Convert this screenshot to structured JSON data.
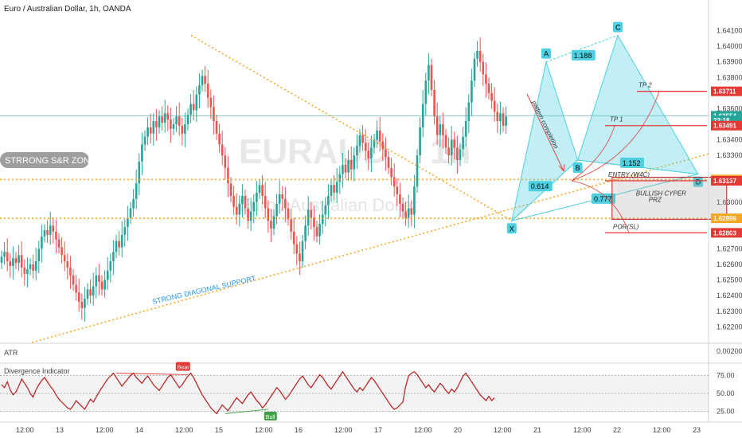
{
  "title": "Euro / Australian Dollar, 1h, OANDA",
  "watermark": {
    "line1": "EURAUD",
    "line2": "1h",
    "line3": "Euro / Australian Dollar"
  },
  "colors": {
    "bull": "#26a69a",
    "bear": "#ef5350",
    "pattern": "#4dd0e1",
    "support": "#f5a623",
    "red_level": "#e53935",
    "rsi": "#b71c1c",
    "green_label": "#43a047"
  },
  "chart_data": {
    "type": "candlestick",
    "ylim": [
      1.6212,
      1.642
    ],
    "price_ticks": [
      "1.64100",
      "1.64000",
      "1.63900",
      "1.63800",
      "1.63600",
      "1.63400",
      "1.63300",
      "1.63000",
      "1.62900",
      "1.62700",
      "1.62600",
      "1.62500",
      "1.62400",
      "1.62300",
      "1.62200"
    ],
    "time_ticks": [
      "12:00",
      "13",
      "12:00",
      "14",
      "12:00",
      "15",
      "12:00",
      "16",
      "12:00",
      "17",
      "12:00",
      "20",
      "12:00",
      "21",
      "12:00",
      "22",
      "12:00",
      "23"
    ],
    "price_flags": [
      {
        "label": "1.63711",
        "value": 1.63711,
        "color": "#e53935"
      },
      {
        "label": "1.63554",
        "value": 1.63554,
        "color": "#26a69a"
      },
      {
        "label": "23:18",
        "value": 1.63525,
        "color": "#26a69a"
      },
      {
        "label": "1.63491",
        "value": 1.63491,
        "color": "#e53935"
      },
      {
        "label": "1.63145",
        "value": 1.63145,
        "color": "#f5a623"
      },
      {
        "label": "1.63137",
        "value": 1.63137,
        "color": "#e53935"
      },
      {
        "label": "1.62896",
        "value": 1.62896,
        "color": "#f5a623"
      },
      {
        "label": "1.62803",
        "value": 1.62803,
        "color": "#e53935"
      }
    ],
    "closes": [
      1.6265,
      1.6268,
      1.6262,
      1.6259,
      1.6264,
      1.6261,
      1.6266,
      1.6258,
      1.6254,
      1.6257,
      1.626,
      1.6256,
      1.6262,
      1.627,
      1.6278,
      1.6282,
      1.6279,
      1.6285,
      1.6281,
      1.6276,
      1.6271,
      1.6266,
      1.6262,
      1.6258,
      1.6253,
      1.6247,
      1.6242,
      1.6236,
      1.6232,
      1.6238,
      1.6244,
      1.624,
      1.6246,
      1.6253,
      1.6249,
      1.6244,
      1.625,
      1.6256,
      1.6262,
      1.6268,
      1.6275,
      1.6271,
      1.6279,
      1.6284,
      1.629,
      1.6296,
      1.6302,
      1.6312,
      1.6326,
      1.6337,
      1.6342,
      1.6348,
      1.6344,
      1.6352,
      1.6348,
      1.6355,
      1.6351,
      1.6357,
      1.6353,
      1.6347,
      1.635,
      1.6355,
      1.6349,
      1.6344,
      1.635,
      1.6356,
      1.6363,
      1.6359,
      1.6369,
      1.6375,
      1.6381,
      1.6376,
      1.6367,
      1.6361,
      1.6352,
      1.6344,
      1.6337,
      1.633,
      1.6322,
      1.6312,
      1.6304,
      1.6297,
      1.6292,
      1.6299,
      1.6304,
      1.6296,
      1.6288,
      1.6294,
      1.63,
      1.6306,
      1.6311,
      1.6304,
      1.6296,
      1.6288,
      1.6283,
      1.6291,
      1.6299,
      1.6305,
      1.6302,
      1.6296,
      1.6289,
      1.6281,
      1.6273,
      1.6267,
      1.6262,
      1.6275,
      1.6285,
      1.6295,
      1.629,
      1.6284,
      1.6278,
      1.6286,
      1.6292,
      1.6298,
      1.6304,
      1.6311,
      1.6306,
      1.6313,
      1.6318,
      1.6324,
      1.6319,
      1.6327,
      1.6321,
      1.633,
      1.6336,
      1.6343,
      1.6338,
      1.6333,
      1.6328,
      1.6335,
      1.634,
      1.6346,
      1.6339,
      1.6334,
      1.6329,
      1.6322,
      1.6316,
      1.631,
      1.6305,
      1.6299,
      1.6294,
      1.629,
      1.6296,
      1.6292,
      1.631,
      1.633,
      1.6348,
      1.6363,
      1.6378,
      1.6388,
      1.6372,
      1.6355,
      1.6343,
      1.635,
      1.6343,
      1.6335,
      1.633,
      1.634,
      1.6335,
      1.6327,
      1.6334,
      1.6342,
      1.6352,
      1.6364,
      1.6378,
      1.6392,
      1.6397,
      1.639,
      1.6382,
      1.6376,
      1.637,
      1.6365,
      1.6358,
      1.6352,
      1.6357,
      1.6349,
      1.6355
    ],
    "pattern_points": [
      {
        "label": "X",
        "x": 178,
        "y": 1.6288
      },
      {
        "label": "A",
        "x": 190,
        "y": 1.639
      },
      {
        "label": "B",
        "x": 201,
        "y": 1.6327
      },
      {
        "label": "C",
        "x": 215,
        "y": 1.6407
      },
      {
        "label": "D",
        "x": 243,
        "y": 1.6318
      }
    ],
    "ratios": [
      {
        "label": "1.188",
        "x": 203,
        "y": 1.6394
      },
      {
        "label": "0.614",
        "x": 188,
        "y": 1.631
      },
      {
        "label": "1.152",
        "x": 220,
        "y": 1.6325
      },
      {
        "label": "0.777",
        "x": 210,
        "y": 1.6302
      }
    ],
    "prz": {
      "label1": "BULLISH CYPER",
      "label2": "PRZ",
      "x0": 213,
      "x1": 253,
      "y0": 1.6289,
      "y1": 1.6316
    },
    "levels": [
      {
        "label": "TP 2",
        "value": 1.63711
      },
      {
        "label": "TP 1",
        "value": 1.63491
      },
      {
        "label": "ENTRY (W4C)",
        "value": 1.63137
      },
      {
        "label": "POR(SL)",
        "value": 1.62803
      }
    ],
    "zone_label": "STRRONG S&R ZONE",
    "diag_label": "STRONG DIAGONAL SUPPORT",
    "completion_label": "pattern completion"
  },
  "atr": {
    "label": "ATR",
    "value_label": "0.00200"
  },
  "divergence": {
    "label": "Divergence Indicator",
    "ticks": [
      "75.00",
      "50.00",
      "25.00"
    ],
    "bear_label": "Bear",
    "bull_label": "Bull",
    "values": [
      62,
      58,
      66,
      55,
      48,
      52,
      60,
      70,
      64,
      58,
      50,
      45,
      55,
      62,
      68,
      72,
      66,
      60,
      55,
      48,
      42,
      38,
      34,
      30,
      28,
      33,
      40,
      36,
      32,
      28,
      35,
      42,
      38,
      45,
      52,
      58,
      64,
      70,
      74,
      78,
      72,
      66,
      60,
      65,
      70,
      75,
      78,
      72,
      68,
      64,
      70,
      74,
      68,
      62,
      58,
      54,
      60,
      66,
      72,
      76,
      70,
      64,
      58,
      62,
      68,
      74,
      78,
      72,
      64,
      56,
      48,
      42,
      36,
      30,
      26,
      22,
      28,
      34,
      30,
      26,
      32,
      38,
      44,
      40,
      36,
      42,
      48,
      52,
      46,
      40,
      36,
      30,
      34,
      40,
      46,
      52,
      58,
      54,
      48,
      42,
      46,
      52,
      58,
      64,
      70,
      74,
      68,
      62,
      58,
      64,
      70,
      76,
      72,
      66,
      60,
      56,
      62,
      68,
      74,
      80,
      74,
      68,
      62,
      56,
      52,
      58,
      54,
      60,
      66,
      72,
      68,
      62,
      56,
      50,
      44,
      38,
      32,
      28,
      30,
      34,
      38,
      60,
      74,
      78,
      80,
      76,
      70,
      64,
      58,
      62,
      56,
      52,
      58,
      64,
      60,
      54,
      50,
      56,
      52,
      58,
      66,
      74,
      78,
      72,
      66,
      60,
      54,
      48,
      44,
      40,
      46,
      40,
      44
    ]
  }
}
